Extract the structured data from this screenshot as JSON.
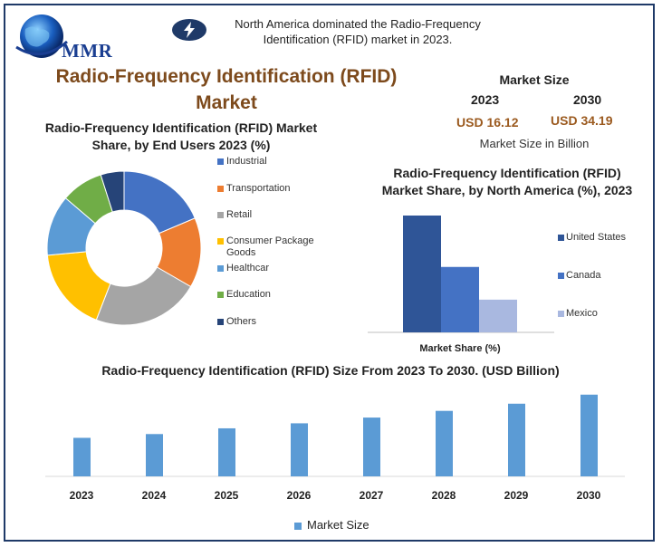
{
  "header": {
    "logo_text": "MMR",
    "headline": "North America dominated the Radio-Frequency Identification (RFID) market in 2023.",
    "title": "Radio-Frequency Identification (RFID) Market"
  },
  "market_size": {
    "title": "Market Size",
    "year_start": "2023",
    "year_end": "2030",
    "value_start": "USD 16.12",
    "value_end": "USD 34.19",
    "note": "Market Size in Billion"
  },
  "colors": {
    "border": "#1f3a68",
    "title_brown": "#7d4a1c",
    "usd_brown": "#9b5a1f",
    "bar_blue": "#5b9bd5"
  },
  "chart_data": [
    {
      "type": "pie",
      "title": "Radio-Frequency Identification (RFID) Market Share, by End Users 2023 (%)",
      "categories": [
        "Industrial",
        "Transportation",
        "Retail",
        "Consumer Package Goods",
        "Healthcar",
        "Education",
        "Others"
      ],
      "values": [
        19,
        15,
        23,
        18,
        13,
        9,
        5
      ],
      "colors": [
        "#4472c4",
        "#ed7d31",
        "#a5a5a5",
        "#ffc000",
        "#5b9bd5",
        "#70ad47",
        "#264478"
      ],
      "legend": "right"
    },
    {
      "type": "bar",
      "title": "Radio-Frequency Identification (RFID) Market Share, by North America (%), 2023",
      "xlabel": "Market Share (%)",
      "series": [
        {
          "name": "United States",
          "values": [
            50
          ],
          "color": "#2f5597"
        },
        {
          "name": "Canada",
          "values": [
            28
          ],
          "color": "#4472c4"
        },
        {
          "name": "Mexico",
          "values": [
            14
          ],
          "color": "#a9b8e0"
        }
      ],
      "ylim": [
        0,
        50
      ],
      "legend": "right"
    },
    {
      "type": "bar",
      "title": "Radio-Frequency Identification (RFID) Size From 2023 To 2030. (USD Billion)",
      "categories": [
        "2023",
        "2024",
        "2025",
        "2026",
        "2027",
        "2028",
        "2029",
        "2030"
      ],
      "series": [
        {
          "name": "Market Size",
          "values": [
            16.12,
            17.7,
            20.1,
            22.2,
            24.6,
            27.4,
            30.4,
            34.19
          ]
        }
      ],
      "ylim": [
        0,
        36
      ],
      "legend": "bottom"
    }
  ]
}
